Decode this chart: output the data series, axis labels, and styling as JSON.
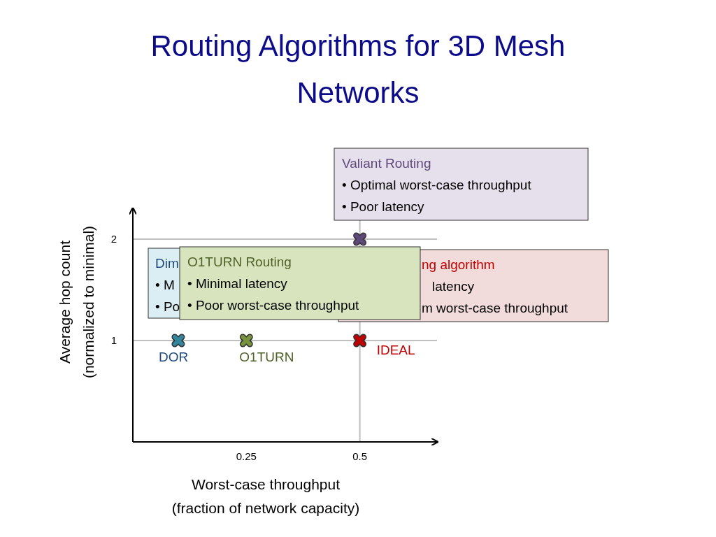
{
  "chart_data": {
    "type": "scatter",
    "title": "Routing Algorithms for 3D Mesh\nNetworks",
    "xlabel": "Worst-case throughput\n(fraction of network capacity)",
    "ylabel": "Average hop count\n(normalized to minimal)",
    "xlim": [
      0,
      0.67
    ],
    "ylim": [
      0,
      2.3
    ],
    "xticks": [
      0.25,
      0.5
    ],
    "yticks": [
      1,
      2
    ],
    "marker": "cross",
    "series": [
      {
        "name": "DOR",
        "color": "#31859c",
        "x": [
          0.1
        ],
        "values": [
          1
        ]
      },
      {
        "name": "O1TURN",
        "color": "#76923c",
        "x": [
          0.25
        ],
        "values": [
          1
        ]
      },
      {
        "name": "IDEAL",
        "color": "#c00000",
        "x": [
          0.5
        ],
        "values": [
          1
        ]
      },
      {
        "color": "#5f497a",
        "x": [
          0.5
        ],
        "values": [
          2
        ]
      }
    ],
    "ref_lines": [
      {
        "axis": "y",
        "value": 1,
        "color": "#bfbfbf"
      },
      {
        "axis": "y",
        "value": 2,
        "color": "#bfbfbf"
      },
      {
        "axis": "x",
        "value": 0.5,
        "color": "#bfbfbf"
      }
    ],
    "annotations": [
      "Valiant Routing\n• Optimal worst-case throughput\n• Poor latency",
      "Dim\n• M\n• Po",
      "ng algorithm\nlatency\nm worst-case throughput",
      "O1TURN Routing\n• Minimal latency\n• Poor worst-case throughput"
    ]
  }
}
